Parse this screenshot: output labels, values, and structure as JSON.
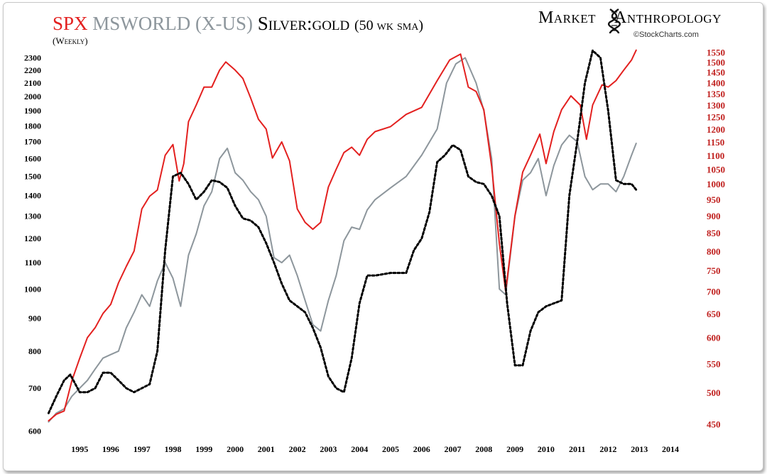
{
  "title": {
    "spx": "SPX",
    "msworld": "MSWORLD (X-US)",
    "silver_gold": "Silver:gold",
    "sma": "(50 wk sma)",
    "subtitle": "(Weekly)"
  },
  "branding": {
    "left_word": "Market",
    "right_word": "Anthropology",
    "credit": "©StockCharts.com"
  },
  "colors": {
    "spx": "#e3201f",
    "msworld": "#8d969c",
    "silver_gold": "#000000",
    "right_axis": "#c0201e"
  },
  "icons": {
    "logo": "dna-helix-icon"
  },
  "chart_data": {
    "type": "line",
    "x_ticks": [
      "1995",
      "1996",
      "1997",
      "1998",
      "1999",
      "2000",
      "2001",
      "2002",
      "2003",
      "2004",
      "2005",
      "2006",
      "2007",
      "2008",
      "2009",
      "2010",
      "2011",
      "2012",
      "2013",
      "2014"
    ],
    "x_range": [
      1994.4,
      2014.5
    ],
    "left_axis": {
      "scale": "log",
      "ticks": [
        600,
        700,
        800,
        900,
        1000,
        1100,
        1200,
        1300,
        1400,
        1500,
        1600,
        1700,
        1800,
        1900,
        2000,
        2100,
        2200,
        2300
      ],
      "range": [
        590,
        2380
      ]
    },
    "right_axis": {
      "scale": "log",
      "ticks": [
        450,
        500,
        550,
        600,
        650,
        700,
        750,
        800,
        850,
        900,
        950,
        1000,
        1050,
        1100,
        1150,
        1200,
        1250,
        1300,
        1350,
        1400,
        1450,
        1500,
        1550
      ],
      "range": [
        433,
        1570
      ]
    },
    "series": [
      {
        "name": "SPX",
        "axis": "right",
        "style": "solid",
        "x": [
          1994.5,
          1994.75,
          1995.0,
          1995.25,
          1995.5,
          1995.75,
          1996.0,
          1996.25,
          1996.5,
          1996.75,
          1997.0,
          1997.25,
          1997.5,
          1997.75,
          1998.0,
          1998.25,
          1998.5,
          1998.7,
          1998.85,
          1999.0,
          1999.25,
          1999.5,
          1999.75,
          2000.0,
          2000.2,
          2000.5,
          2000.75,
          2001.0,
          2001.25,
          2001.5,
          2001.7,
          2001.9,
          2002.0,
          2002.25,
          2002.5,
          2002.75,
          2003.0,
          2003.25,
          2003.5,
          2003.75,
          2004.0,
          2004.25,
          2004.5,
          2004.75,
          2005.0,
          2005.5,
          2006.0,
          2006.5,
          2007.0,
          2007.4,
          2007.75,
          2008.0,
          2008.25,
          2008.5,
          2008.75,
          2009.0,
          2009.2,
          2009.5,
          2009.75,
          2010.0,
          2010.3,
          2010.5,
          2010.75,
          2011.0,
          2011.3,
          2011.6,
          2011.8,
          2012.0,
          2012.3,
          2012.5,
          2012.75,
          2013.0,
          2013.25,
          2013.4
        ],
        "values": [
          455,
          465,
          470,
          520,
          560,
          600,
          620,
          650,
          670,
          720,
          760,
          800,
          920,
          960,
          980,
          1100,
          1140,
          1010,
          1070,
          1230,
          1300,
          1380,
          1380,
          1460,
          1500,
          1460,
          1420,
          1330,
          1240,
          1200,
          1090,
          1130,
          1150,
          1080,
          920,
          880,
          860,
          880,
          990,
          1050,
          1110,
          1130,
          1100,
          1160,
          1190,
          1210,
          1260,
          1290,
          1410,
          1510,
          1540,
          1380,
          1360,
          1280,
          1060,
          820,
          700,
          900,
          1040,
          1100,
          1180,
          1070,
          1190,
          1280,
          1340,
          1300,
          1160,
          1300,
          1390,
          1380,
          1410,
          1460,
          1510,
          1560
        ]
      },
      {
        "name": "MSWORLD (X-US)",
        "axis": "left",
        "style": "solid",
        "x": [
          1994.5,
          1994.75,
          1995.0,
          1995.25,
          1995.5,
          1995.75,
          1996.0,
          1996.25,
          1996.5,
          1996.75,
          1997.0,
          1997.25,
          1997.5,
          1997.75,
          1998.0,
          1998.25,
          1998.5,
          1998.75,
          1999.0,
          1999.25,
          1999.5,
          1999.75,
          2000.0,
          2000.25,
          2000.5,
          2000.75,
          2001.0,
          2001.25,
          2001.5,
          2001.75,
          2002.0,
          2002.25,
          2002.5,
          2002.75,
          2003.0,
          2003.25,
          2003.5,
          2003.75,
          2004.0,
          2004.25,
          2004.5,
          2004.75,
          2005.0,
          2005.5,
          2006.0,
          2006.5,
          2007.0,
          2007.3,
          2007.6,
          2007.9,
          2008.25,
          2008.5,
          2008.75,
          2009.0,
          2009.2,
          2009.5,
          2009.75,
          2010.0,
          2010.25,
          2010.5,
          2010.75,
          2011.0,
          2011.25,
          2011.5,
          2011.75,
          2012.0,
          2012.25,
          2012.5,
          2012.75,
          2013.0,
          2013.25,
          2013.4
        ],
        "values": [
          620,
          640,
          650,
          680,
          700,
          720,
          750,
          780,
          790,
          800,
          870,
          920,
          980,
          940,
          1030,
          1100,
          1040,
          940,
          1130,
          1220,
          1350,
          1420,
          1600,
          1660,
          1520,
          1480,
          1420,
          1380,
          1300,
          1120,
          1100,
          1130,
          1050,
          960,
          880,
          860,
          960,
          1050,
          1190,
          1250,
          1240,
          1330,
          1380,
          1440,
          1500,
          1620,
          1780,
          2100,
          2250,
          2300,
          2100,
          1900,
          1600,
          1000,
          980,
          1300,
          1480,
          1520,
          1600,
          1400,
          1560,
          1680,
          1740,
          1700,
          1500,
          1430,
          1460,
          1460,
          1420,
          1500,
          1620,
          1690
        ]
      },
      {
        "name": "Silver:gold (50 wk sma)",
        "axis": "left",
        "style": "dotted",
        "x": [
          1994.5,
          1994.75,
          1995.0,
          1995.2,
          1995.5,
          1995.75,
          1996.0,
          1996.25,
          1996.5,
          1996.75,
          1997.0,
          1997.25,
          1997.5,
          1997.75,
          1998.0,
          1998.25,
          1998.5,
          1998.75,
          1999.0,
          1999.25,
          1999.5,
          1999.75,
          2000.0,
          2000.25,
          2000.5,
          2000.75,
          2001.0,
          2001.25,
          2001.5,
          2001.75,
          2002.0,
          2002.25,
          2002.5,
          2002.75,
          2003.0,
          2003.25,
          2003.5,
          2003.75,
          2004.0,
          2004.25,
          2004.5,
          2004.75,
          2005.0,
          2005.5,
          2006.0,
          2006.25,
          2006.5,
          2006.75,
          2007.0,
          2007.25,
          2007.5,
          2007.75,
          2008.0,
          2008.25,
          2008.5,
          2008.75,
          2009.0,
          2009.25,
          2009.5,
          2009.75,
          2010.0,
          2010.25,
          2010.5,
          2010.75,
          2011.0,
          2011.25,
          2011.5,
          2011.75,
          2012.0,
          2012.25,
          2012.5,
          2012.75,
          2013.0,
          2013.25,
          2013.4
        ],
        "values": [
          640,
          680,
          720,
          735,
          690,
          690,
          700,
          740,
          740,
          720,
          700,
          690,
          700,
          710,
          800,
          1150,
          1500,
          1520,
          1460,
          1380,
          1420,
          1480,
          1470,
          1440,
          1350,
          1290,
          1280,
          1250,
          1180,
          1100,
          1020,
          960,
          940,
          920,
          870,
          810,
          730,
          700,
          690,
          780,
          950,
          1050,
          1050,
          1060,
          1060,
          1150,
          1200,
          1320,
          1580,
          1620,
          1680,
          1650,
          1500,
          1470,
          1460,
          1400,
          1300,
          950,
          760,
          760,
          860,
          920,
          940,
          950,
          960,
          1400,
          1700,
          2100,
          2360,
          2300,
          1900,
          1480,
          1460,
          1460,
          1430
        ]
      }
    ],
    "grid": false,
    "legend": "none"
  }
}
